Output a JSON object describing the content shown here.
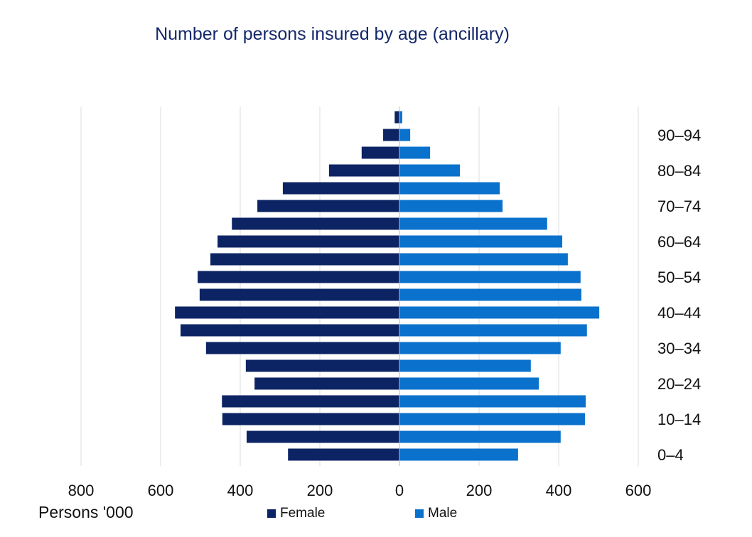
{
  "chart_data": {
    "type": "bar",
    "orientation": "horizontal",
    "layout": "population-pyramid",
    "title": "Number of persons insured by age (ancillary)",
    "xlabel": "Persons '000",
    "categories": [
      "0–4",
      "",
      "10–14",
      "",
      "20–24",
      "",
      "30–34",
      "",
      "40–44",
      "",
      "50–54",
      "",
      "60–64",
      "",
      "70–74",
      "",
      "80–84",
      "",
      "90–94",
      ""
    ],
    "x_tick_labels": [
      "800",
      "600",
      "400",
      "200",
      "0",
      "200",
      "400",
      "600"
    ],
    "xlim": [
      -800,
      600
    ],
    "grid": true,
    "legend_position": "bottom",
    "series": [
      {
        "name": "Female",
        "color": "#0d2464",
        "side": "left",
        "values": [
          280,
          384,
          445,
          446,
          364,
          386,
          486,
          550,
          564,
          502,
          507,
          475,
          457,
          421,
          357,
          293,
          177,
          95,
          41,
          12
        ]
      },
      {
        "name": "Male",
        "color": "#0a72cc",
        "side": "right",
        "values": [
          298,
          405,
          466,
          468,
          350,
          330,
          405,
          471,
          502,
          457,
          455,
          423,
          409,
          371,
          259,
          252,
          152,
          77,
          27,
          7
        ]
      }
    ]
  }
}
